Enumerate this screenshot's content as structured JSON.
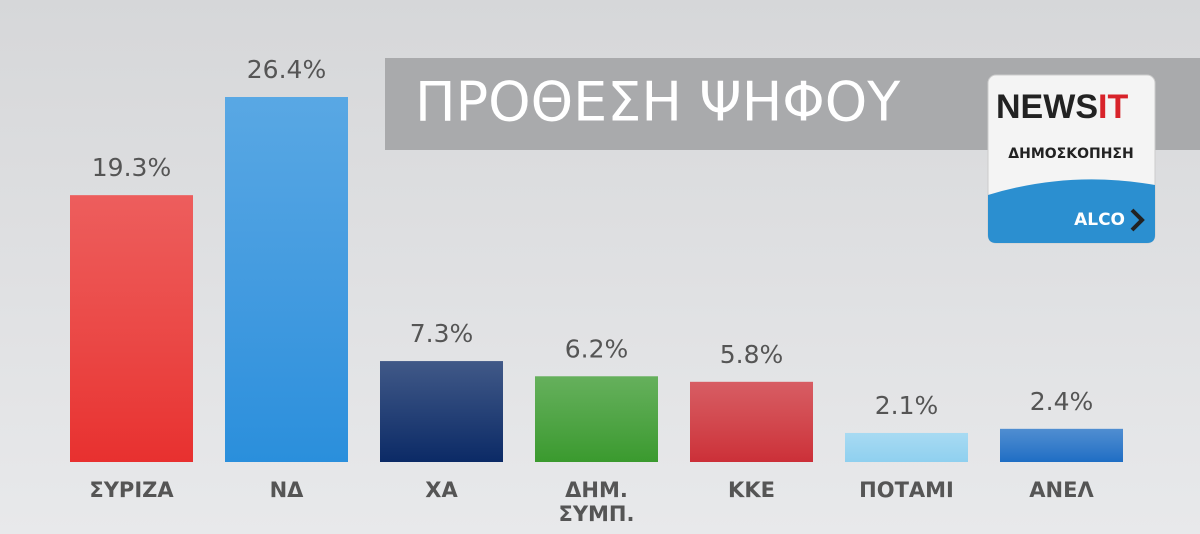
{
  "chart_data": {
    "type": "bar",
    "title": "ΠΡΟΘΕΣΗ ΨΗΦΟΥ",
    "categories": [
      "ΣΥΡΙΖΑ",
      "ΝΔ",
      "ΧΑ",
      "ΔΗΜ. ΣΥΜΠ.",
      "ΚΚΕ",
      "ΠΟΤΑΜΙ",
      "ΑΝΕΛ"
    ],
    "values": [
      19.3,
      26.4,
      7.3,
      6.2,
      5.8,
      2.1,
      2.4
    ],
    "value_labels": [
      "19.3%",
      "26.4%",
      "7.3%",
      "6.2%",
      "5.8%",
      "2.1%",
      "2.4%"
    ],
    "colors": [
      "#e8302f",
      "#2a8fdc",
      "#0b2a66",
      "#3a9a2e",
      "#cc2f38",
      "#8fd0ef",
      "#1e6ec4"
    ],
    "logo": {
      "brand": "NEWS",
      "brand_accent": "IT",
      "subtitle": "ΔΗΜΟΣΚΟΠΗΣΗ",
      "source": "ALCO"
    }
  }
}
